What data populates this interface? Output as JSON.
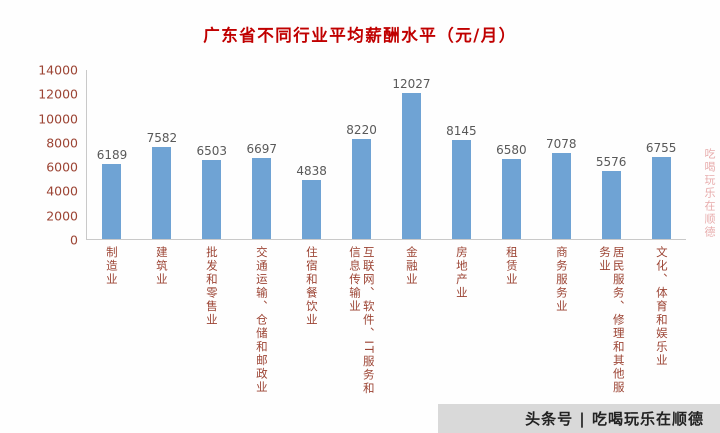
{
  "chart_data": {
    "type": "bar",
    "title": "广东省不同行业平均薪酬水平（元/月）",
    "categories": [
      "制造业",
      "建筑业",
      "批发和零售业",
      "交通运输、仓储和邮政业",
      "住宿和餐饮业",
      "互联网、软件、IT服务和信息传输业",
      "金融业",
      "房地产业",
      "租赁业",
      "商务服务业",
      "居民服务、修理和其他服务业",
      "文化、体育和娱乐业"
    ],
    "values": [
      6189,
      7582,
      6503,
      6697,
      4838,
      8220,
      12027,
      8145,
      6580,
      7078,
      5576,
      6755
    ],
    "xlabel": "",
    "ylabel": "",
    "ylim": [
      0,
      14000
    ],
    "yticks": [
      14000,
      12000,
      10000,
      8000,
      6000,
      4000,
      2000,
      0
    ],
    "grid": false,
    "legend": false,
    "bar_color": "#6fa3d4",
    "title_color": "#c00000",
    "axis_text_color": "#9c4434",
    "value_label_color": "#595959"
  },
  "watermarks": {
    "bottom_text": "头条号 | 吃喝玩乐在顺德",
    "side_text": "吃喝玩乐在顺德"
  }
}
